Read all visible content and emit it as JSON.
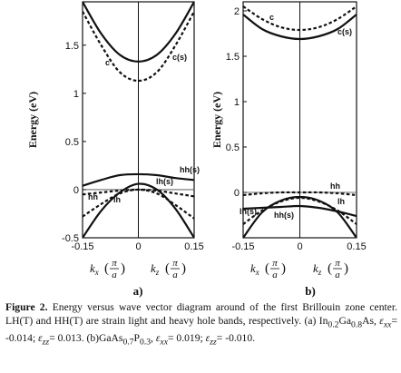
{
  "chart_data": [
    {
      "type": "line",
      "panel_label": "a)",
      "ylabel": "Energy (eV)",
      "x_range": [
        -0.15,
        0.15
      ],
      "ylim": [
        -0.5,
        1.95
      ],
      "yticks": [
        -0.5,
        0,
        0.5,
        1,
        1.5
      ],
      "ytick_labels": [
        "-0.5",
        "0",
        "0.5",
        "1",
        "1.5"
      ],
      "xticks": [
        -0.15,
        0,
        0.15
      ],
      "xtick_labels": [
        "-0.15",
        "0",
        "0.15"
      ],
      "x_axis_labels": {
        "left": "k",
        "left_sub": "x",
        "right": "k",
        "right_sub": "z",
        "frac_num": "π",
        "frac_den": "a"
      },
      "series": [
        {
          "name": "c(s)",
          "style": "solid",
          "x": [
            -0.15,
            -0.1,
            -0.05,
            0,
            0.05,
            0.1,
            0.15
          ],
          "y": [
            1.95,
            1.62,
            1.4,
            1.33,
            1.4,
            1.62,
            1.95
          ]
        },
        {
          "name": "c",
          "style": "dashed",
          "x": [
            -0.15,
            -0.1,
            -0.05,
            0,
            0.05,
            0.1,
            0.15
          ],
          "y": [
            1.85,
            1.5,
            1.22,
            1.13,
            1.22,
            1.5,
            1.85
          ]
        },
        {
          "name": "hh(s)",
          "style": "solid",
          "x": [
            -0.15,
            -0.1,
            -0.05,
            0,
            0.05,
            0.1,
            0.15
          ],
          "y": [
            0.04,
            0.1,
            0.15,
            0.16,
            0.15,
            0.12,
            0.1
          ]
        },
        {
          "name": "lh(s)",
          "style": "solid",
          "x": [
            -0.15,
            -0.1,
            -0.05,
            0,
            0.05,
            0.1,
            0.15
          ],
          "y": [
            -0.5,
            -0.22,
            -0.03,
            0.06,
            0.0,
            -0.2,
            -0.5
          ]
        },
        {
          "name": "hh",
          "style": "dashed",
          "x": [
            -0.15,
            -0.1,
            -0.05,
            0,
            0.05,
            0.1,
            0.15
          ],
          "y": [
            -0.05,
            -0.03,
            -0.01,
            0.0,
            -0.01,
            -0.04,
            -0.07
          ]
        },
        {
          "name": "lh",
          "style": "dashed",
          "x": [
            -0.15,
            -0.1,
            -0.05,
            0,
            0.05,
            0.1,
            0.15
          ],
          "y": [
            -0.28,
            -0.15,
            -0.04,
            0.0,
            -0.04,
            -0.16,
            -0.3
          ]
        }
      ]
    },
    {
      "type": "line",
      "panel_label": "b)",
      "ylabel": "Energy (eV)",
      "x_range": [
        -0.15,
        0.15
      ],
      "ylim": [
        -0.5,
        2.1
      ],
      "yticks": [
        0,
        0.5,
        1,
        1.5,
        2
      ],
      "ytick_labels": [
        "0",
        "0.5",
        "1",
        "1.5",
        "2"
      ],
      "xticks": [
        -0.15,
        0,
        0.15
      ],
      "xtick_labels": [
        "-0.15",
        "0",
        "0.15"
      ],
      "x_axis_labels": {
        "left": "k",
        "left_sub": "x",
        "right": "k",
        "right_sub": "z",
        "frac_num": "π",
        "frac_den": "a"
      },
      "series": [
        {
          "name": "c",
          "style": "dashed",
          "x": [
            -0.15,
            -0.1,
            -0.05,
            0,
            0.05,
            0.1,
            0.15
          ],
          "y": [
            2.05,
            1.91,
            1.82,
            1.79,
            1.82,
            1.91,
            2.05
          ]
        },
        {
          "name": "c(s)",
          "style": "solid",
          "x": [
            -0.15,
            -0.1,
            -0.05,
            0,
            0.05,
            0.1,
            0.15
          ],
          "y": [
            1.96,
            1.8,
            1.72,
            1.69,
            1.72,
            1.8,
            1.96
          ]
        },
        {
          "name": "hh",
          "style": "dashed",
          "x": [
            -0.15,
            -0.1,
            -0.05,
            0,
            0.05,
            0.1,
            0.15
          ],
          "y": [
            -0.03,
            -0.01,
            0.0,
            0.0,
            0.0,
            -0.01,
            -0.03
          ]
        },
        {
          "name": "lh",
          "style": "dashed",
          "x": [
            -0.15,
            -0.1,
            -0.05,
            0,
            0.05,
            0.1,
            0.15
          ],
          "y": [
            -0.35,
            -0.2,
            -0.1,
            -0.06,
            -0.1,
            -0.2,
            -0.35
          ]
        },
        {
          "name": "lh(s)",
          "style": "solid",
          "x": [
            -0.15,
            -0.1,
            -0.05,
            0,
            0.05,
            0.1,
            0.15
          ],
          "y": [
            -0.5,
            -0.22,
            -0.09,
            -0.05,
            -0.09,
            -0.22,
            -0.5
          ]
        },
        {
          "name": "hh(s)",
          "style": "solid",
          "x": [
            -0.15,
            -0.1,
            -0.05,
            0,
            0.05,
            0.1,
            0.15
          ],
          "y": [
            -0.18,
            -0.17,
            -0.16,
            -0.15,
            -0.17,
            -0.21,
            -0.26
          ]
        }
      ]
    }
  ],
  "caption": {
    "label": "Figure 2.",
    "text1": " Energy versus wave vector diagram around of the first Brillouin zone center. LH(T) and HH(T) are strain light and heavy hole bands, respectively. (a) In",
    "sub1": "0.2",
    "text2": "Ga",
    "sub2": "0.8",
    "text3": "As,  ",
    "eps": "ε",
    "xx": "xx",
    "val_a_xx": "= -0.014;  ",
    "zz": "zz",
    "val_a_zz": "= 0.013. (b)GaAs",
    "sub3": "0.7",
    "text4": "P",
    "sub4": "0.3",
    "text5": ",  ",
    "val_b_xx": "= 0.019;  ",
    "val_b_zz": "= -0.010."
  }
}
